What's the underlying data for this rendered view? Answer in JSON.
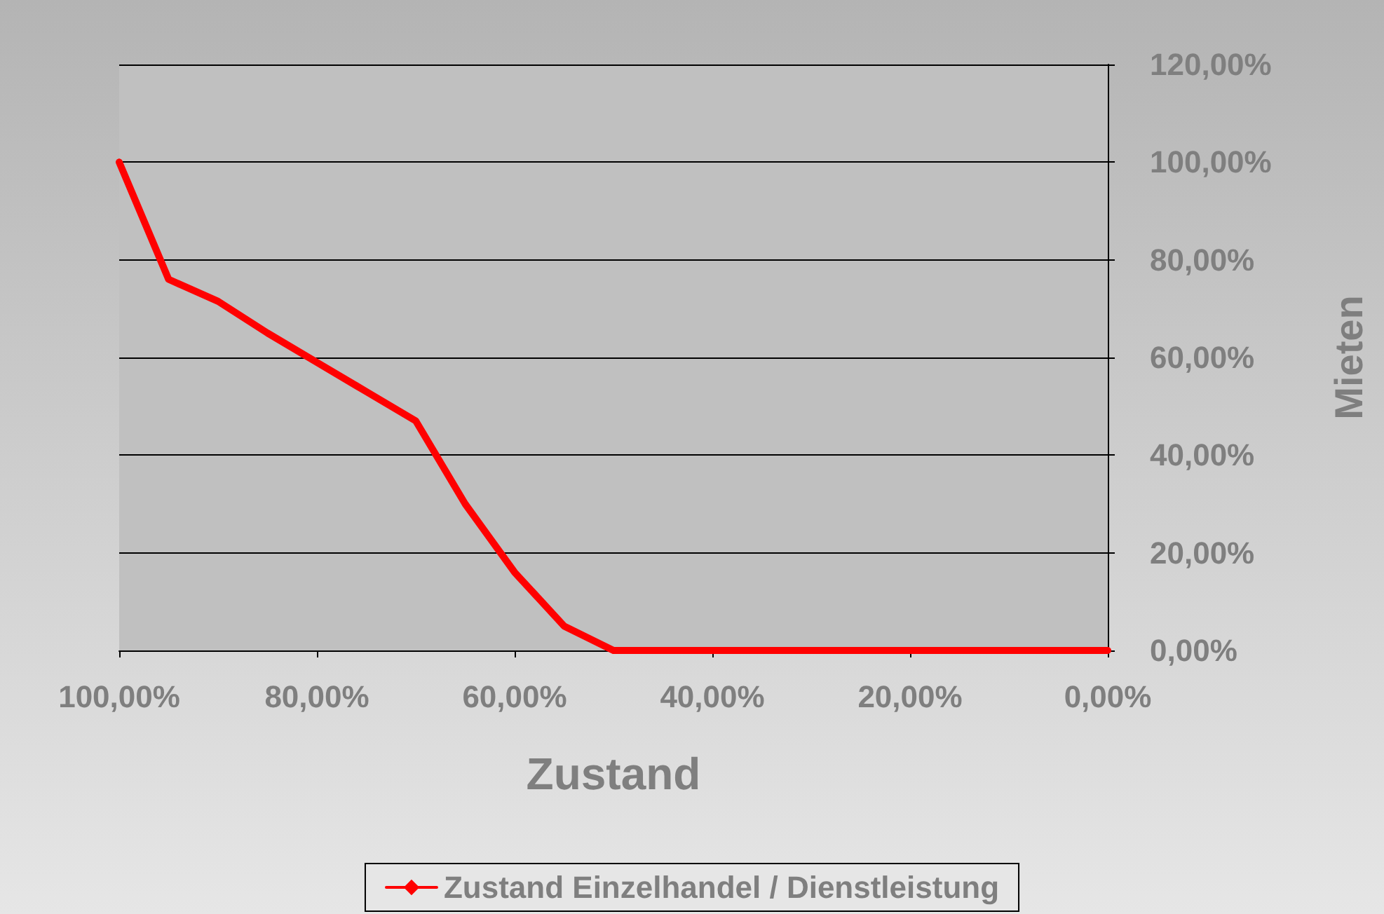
{
  "chart_data": {
    "type": "line",
    "xlabel": "Zustand",
    "ylabel": "Mieten",
    "x": [
      100,
      95,
      90,
      85,
      80,
      75,
      70,
      65,
      60,
      55,
      50,
      45,
      40,
      35,
      30,
      25,
      20,
      15,
      10,
      5,
      0
    ],
    "series": [
      {
        "name": "Zustand Einzelhandel / Dienstleistung",
        "color": "#ff0000",
        "values": [
          100,
          76,
          71.5,
          65,
          59,
          53,
          47,
          30,
          16,
          5,
          0,
          0,
          0,
          0,
          0,
          0,
          0,
          0,
          0,
          0,
          0
        ]
      }
    ],
    "xlim": [
      100,
      0
    ],
    "xticks": [
      {
        "value": 100,
        "label": "100,00%"
      },
      {
        "value": 80,
        "label": "80,00%"
      },
      {
        "value": 60,
        "label": "60,00%"
      },
      {
        "value": 40,
        "label": "40,00%"
      },
      {
        "value": 20,
        "label": "20,00%"
      },
      {
        "value": 0,
        "label": "0,00%"
      }
    ],
    "ylim": [
      0,
      120
    ],
    "yticks": [
      {
        "value": 0,
        "label": "0,00%"
      },
      {
        "value": 20,
        "label": "20,00%"
      },
      {
        "value": 40,
        "label": "40,00%"
      },
      {
        "value": 60,
        "label": "60,00%"
      },
      {
        "value": 80,
        "label": "80,00%"
      },
      {
        "value": 100,
        "label": "100,00%"
      },
      {
        "value": 120,
        "label": "120,00%"
      }
    ],
    "grid": "y",
    "legend": "bottom",
    "marker": "diamond",
    "line_style": "solid"
  }
}
